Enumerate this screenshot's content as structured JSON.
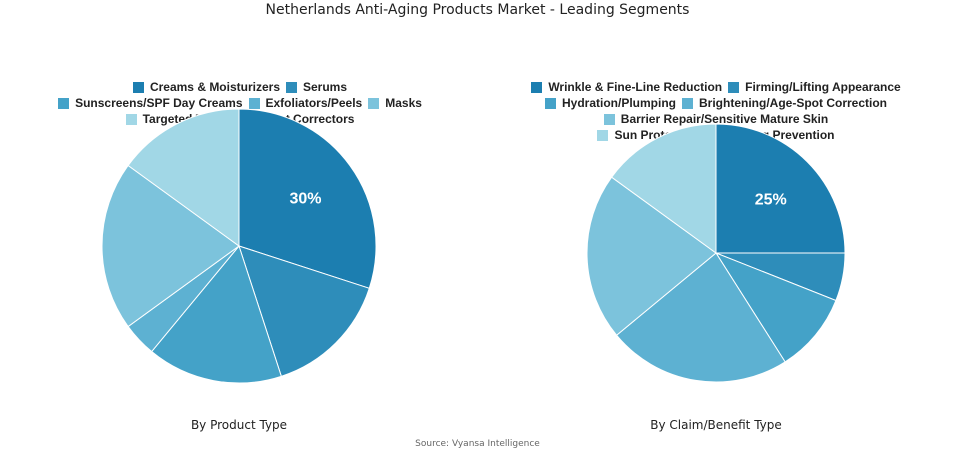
{
  "title": "Netherlands Anti-Aging Products Market - Leading Segments",
  "source": "Source: Vyansa Intelligence",
  "colors": [
    "#1c7eb0",
    "#2e8dba",
    "#44a2c8",
    "#5db1d2",
    "#7cc3dc",
    "#a1d7e6"
  ],
  "chart_data": [
    {
      "type": "pie",
      "subtitle": "By Product Type",
      "start": "top",
      "direction": "clockwise",
      "categories": [
        "Creams & Moisturizers",
        "Serums",
        "Sunscreens/SPF Day Creams",
        "Exfoliators/Peels",
        "Masks",
        "Targeted Treatments/Spot Correctors"
      ],
      "values": [
        30,
        15,
        16,
        4,
        20,
        15
      ],
      "data_labels": [
        "30%",
        "",
        "",
        "",
        "",
        ""
      ],
      "legend": "top"
    },
    {
      "type": "pie",
      "subtitle": "By Claim/Benefit Type",
      "start": "top",
      "direction": "clockwise",
      "categories": [
        "Wrinkle & Fine-Line Reduction",
        "Firming/Lifting Appearance",
        "Hydration/Plumping",
        "Brightening/Age-Spot Correction",
        "Barrier Repair/Sensitive Mature Skin",
        "Sun Protection/Photoaging Prevention"
      ],
      "values": [
        25,
        6,
        10,
        23,
        21,
        15
      ],
      "data_labels": [
        "25%",
        "",
        "",
        "",
        "",
        ""
      ],
      "legend": "top"
    }
  ]
}
